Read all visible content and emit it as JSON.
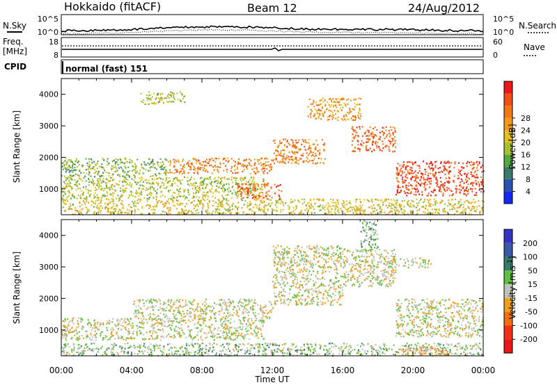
{
  "header": {
    "station": "Hokkaido (fitACF)",
    "beam": "Beam 12",
    "date": "24/Aug/2012"
  },
  "noise_panel": {
    "left_label": "N.Sky",
    "left_ticks": [
      "10^5",
      "10^0"
    ],
    "right_ticks": [
      "10^5",
      "10^0"
    ],
    "right_label": "N.Search"
  },
  "freq_panel": {
    "left_label_line1": "Freq.",
    "left_label_line2": "[MHz]",
    "left_ticks": [
      "18",
      "8"
    ],
    "right_ticks": [
      "60",
      "0"
    ],
    "right_label": "Nave"
  },
  "cpid_panel": {
    "label": "CPID",
    "program": "normal (fast) 151"
  },
  "axes": {
    "ylabel": "Slant Range [km]",
    "xlabel": "Time UT",
    "yticks": [
      "1000",
      "2000",
      "3000",
      "4000"
    ],
    "xticks": [
      "00:00",
      "04:00",
      "08:00",
      "12:00",
      "16:00",
      "20:00",
      "00:00"
    ]
  },
  "colorbars": {
    "power": {
      "label": "Power [dB]",
      "ticks": [
        "4",
        "8",
        "12",
        "16",
        "20",
        "24",
        "28"
      ],
      "colors": [
        "#1428f0",
        "#2c52b0",
        "#3b7a6a",
        "#55a840",
        "#a8c030",
        "#e8c020",
        "#f09a18",
        "#f07818",
        "#f05018",
        "#e81818"
      ]
    },
    "velocity": {
      "label_text": "Velocity [m s",
      "label_exp": "-1",
      "label_close": "]",
      "ticks": [
        "200",
        "100",
        "50",
        "15",
        "-15",
        "-50",
        "-100",
        "-200"
      ],
      "colors": [
        "#3434c0",
        "#3a5aa8",
        "#3a7a6a",
        "#60c040",
        "#c0c0b8",
        "#f0a020",
        "#f07010",
        "#f03018",
        "#e81818"
      ]
    }
  },
  "chart_data": [
    {
      "type": "heatmap",
      "name": "power",
      "xrange_hours": [
        0,
        24
      ],
      "yrange_km": [
        180,
        4500
      ],
      "zunit": "dB",
      "zrange": [
        0,
        30
      ],
      "features": [
        {
          "t0": 0.0,
          "t1": 24.0,
          "r0": 200,
          "r1": 700,
          "level": 16
        },
        {
          "t0": 0.0,
          "t1": 11.5,
          "r0": 700,
          "r1": 1400,
          "level": 14
        },
        {
          "t0": 0.0,
          "t1": 6.0,
          "r0": 1400,
          "r1": 2000,
          "level": 12
        },
        {
          "t0": 6.0,
          "t1": 12.0,
          "r0": 1500,
          "r1": 2000,
          "level": 22
        },
        {
          "t0": 10.0,
          "t1": 12.5,
          "r0": 700,
          "r1": 1200,
          "level": 24
        },
        {
          "t0": 12.0,
          "t1": 15.0,
          "r0": 1800,
          "r1": 2600,
          "level": 22
        },
        {
          "t0": 14.0,
          "t1": 17.0,
          "r0": 3200,
          "r1": 3900,
          "level": 20
        },
        {
          "t0": 16.5,
          "t1": 19.0,
          "r0": 2200,
          "r1": 3000,
          "level": 24
        },
        {
          "t0": 19.0,
          "t1": 24.0,
          "r0": 800,
          "r1": 1900,
          "level": 26
        },
        {
          "t0": 4.5,
          "t1": 7.0,
          "r0": 3700,
          "r1": 4100,
          "level": 14
        }
      ]
    },
    {
      "type": "heatmap",
      "name": "velocity",
      "xrange_hours": [
        0,
        24
      ],
      "yrange_km": [
        180,
        4500
      ],
      "zunit": "m s-1",
      "zrange": [
        -200,
        200
      ],
      "features": [
        {
          "t0": 0.0,
          "t1": 24.0,
          "r0": 200,
          "r1": 600,
          "level": 30
        },
        {
          "t0": 0.0,
          "t1": 11.5,
          "r0": 700,
          "r1": 1400,
          "level": 0
        },
        {
          "t0": 4.0,
          "t1": 12.0,
          "r0": 1400,
          "r1": 2000,
          "level": 0
        },
        {
          "t0": 12.0,
          "t1": 16.0,
          "r0": 1800,
          "r1": 3700,
          "level": 0
        },
        {
          "t0": 16.0,
          "t1": 19.0,
          "r0": 2400,
          "r1": 3600,
          "level": 0
        },
        {
          "t0": 18.5,
          "t1": 21.0,
          "r0": 3000,
          "r1": 3300,
          "level": 0
        },
        {
          "t0": 19.0,
          "t1": 24.0,
          "r0": 800,
          "r1": 2000,
          "level": 0
        },
        {
          "t0": 17.0,
          "t1": 18.0,
          "r0": 3500,
          "r1": 4500,
          "level": 40
        },
        {
          "t0": 19.0,
          "t1": 22.0,
          "r0": 200,
          "r1": 500,
          "level": -40
        }
      ]
    }
  ]
}
